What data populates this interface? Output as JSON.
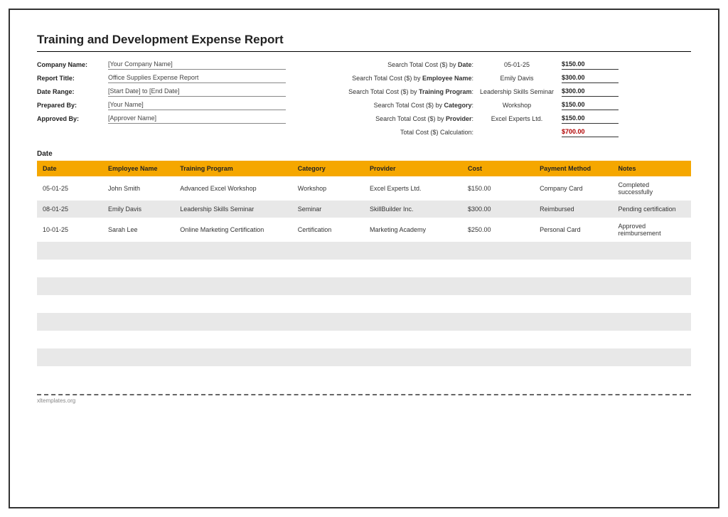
{
  "report": {
    "title": "Training and Development Expense Report",
    "section_label": "Date",
    "footer": "xltemplates.org"
  },
  "left_fields": [
    {
      "label": "Company Name:",
      "value": "[Your Company Name]"
    },
    {
      "label": "Report Title:",
      "value": "Office Supplies Expense Report"
    },
    {
      "label": "Date Range:",
      "value": "[Start Date] to [End Date]"
    },
    {
      "label": "Prepared By:",
      "value": "[Your Name]"
    },
    {
      "label": "Approved By:",
      "value": "[Approver Name]"
    }
  ],
  "right_searches": [
    {
      "label_pre": "Search Total Cost ($) by ",
      "label_bold": "Date",
      "label_post": ":",
      "input": "05-01-25",
      "result": "$150.00"
    },
    {
      "label_pre": "Search Total Cost ($) by ",
      "label_bold": "Employee Name",
      "label_post": ":",
      "input": "Emily Davis",
      "result": "$300.00"
    },
    {
      "label_pre": "Search Total Cost ($) by ",
      "label_bold": "Training Program",
      "label_post": ":",
      "input": "Leadership Skills Seminar",
      "result": "$300.00"
    },
    {
      "label_pre": "Search Total Cost ($) by ",
      "label_bold": "Category",
      "label_post": ":",
      "input": "Workshop",
      "result": "$150.00"
    },
    {
      "label_pre": "Search Total Cost ($) by ",
      "label_bold": "Provider",
      "label_post": ":",
      "input": "Excel Experts Ltd.",
      "result": "$150.00"
    }
  ],
  "right_total": {
    "label": "Total Cost ($) Calculation:",
    "result": "$700.00"
  },
  "table": {
    "columns": [
      "Date",
      "Employee Name",
      "Training Program",
      "Category",
      "Provider",
      "Cost",
      "Payment Method",
      "Notes"
    ],
    "rows": [
      [
        "05-01-25",
        "John Smith",
        "Advanced Excel Workshop",
        "Workshop",
        "Excel Experts Ltd.",
        "$150.00",
        "Company Card",
        "Completed successfully"
      ],
      [
        "08-01-25",
        "Emily Davis",
        "Leadership Skills Seminar",
        "Seminar",
        "SkillBuilder Inc.",
        "$300.00",
        "Reimbursed",
        "Pending certification"
      ],
      [
        "10-01-25",
        "Sarah Lee",
        "Online Marketing Certification",
        "Certification",
        "Marketing Academy",
        "$250.00",
        "Personal Card",
        "Approved reimbursement"
      ]
    ],
    "empty_rows": 8,
    "col_widths": [
      "10%",
      "11%",
      "18%",
      "11%",
      "15%",
      "11%",
      "12%",
      "12%"
    ]
  },
  "colors": {
    "header_bg": "#f5a700",
    "row_grey": "#e8e8e8",
    "row_white": "#ffffff",
    "total_color": "#b00000"
  }
}
